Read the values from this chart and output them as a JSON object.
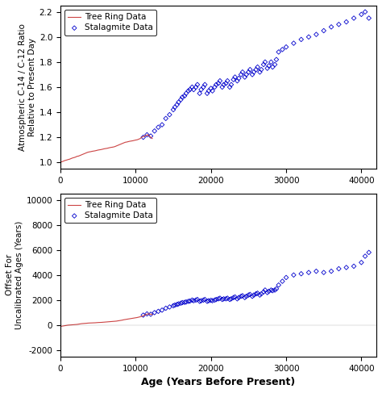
{
  "fig_width": 4.74,
  "fig_height": 4.87,
  "background_color": "#f0f0f0",
  "top_plot": {
    "xlabel": "",
    "ylabel": "Atmospheric C-14 / C-12 Ratio\nRelative to Present Day",
    "xlim": [
      0,
      42000
    ],
    "ylim": [
      0.95,
      2.25
    ],
    "yticks": [
      1.0,
      1.2,
      1.4,
      1.6,
      1.8,
      2.0,
      2.2
    ],
    "xticks": [
      0,
      10000,
      20000,
      30000,
      40000
    ],
    "tree_ring_color": "#cc4444",
    "stalagmite_color": "#0000cc",
    "legend_labels": [
      "Tree Ring Data",
      "Stalagmite Data"
    ]
  },
  "bottom_plot": {
    "xlabel": "Age (Years Before Present)",
    "ylabel": "Offset For\nUncalibrated Ages (Years)",
    "xlim": [
      0,
      42000
    ],
    "ylim": [
      -2500,
      10500
    ],
    "yticks": [
      -2000,
      0,
      2000,
      4000,
      6000,
      8000,
      10000
    ],
    "xticks": [
      0,
      10000,
      20000,
      30000,
      40000
    ],
    "tree_ring_color": "#cc4444",
    "stalagmite_color": "#0000cc",
    "legend_labels": [
      "Tree Ring Data",
      "Stalagmite Data"
    ]
  },
  "tree_ring_top_x": [
    0,
    200,
    400,
    600,
    800,
    1000,
    1200,
    1400,
    1600,
    1800,
    2000,
    2200,
    2400,
    2600,
    2800,
    3000,
    3200,
    3400,
    3600,
    3800,
    4000,
    4200,
    4400,
    4600,
    4800,
    5000,
    5200,
    5400,
    5600,
    5800,
    6000,
    6200,
    6400,
    6600,
    6800,
    7000,
    7200,
    7400,
    7600,
    7800,
    8000,
    8200,
    8400,
    8600,
    8800,
    9000,
    9200,
    9400,
    9600,
    9800,
    10000,
    10200,
    10400,
    10600,
    10800,
    11000,
    11200,
    11400,
    11600,
    11800,
    12000,
    12200
  ],
  "tree_ring_top_y": [
    1.0,
    1.005,
    1.01,
    1.015,
    1.018,
    1.022,
    1.025,
    1.03,
    1.035,
    1.038,
    1.042,
    1.048,
    1.05,
    1.055,
    1.06,
    1.065,
    1.07,
    1.075,
    1.08,
    1.083,
    1.085,
    1.088,
    1.09,
    1.092,
    1.095,
    1.098,
    1.1,
    1.102,
    1.105,
    1.108,
    1.11,
    1.112,
    1.115,
    1.118,
    1.12,
    1.122,
    1.125,
    1.13,
    1.135,
    1.14,
    1.145,
    1.15,
    1.155,
    1.16,
    1.162,
    1.165,
    1.168,
    1.17,
    1.172,
    1.175,
    1.178,
    1.18,
    1.185,
    1.19,
    1.2,
    1.205,
    1.21,
    1.215,
    1.22,
    1.21,
    1.2,
    1.19
  ],
  "stalagmite_top_x": [
    11000,
    11500,
    12000,
    12500,
    13000,
    13500,
    14000,
    14500,
    15000,
    15200,
    15500,
    15700,
    16000,
    16200,
    16500,
    16700,
    17000,
    17200,
    17500,
    17700,
    18000,
    18200,
    18500,
    18700,
    19000,
    19200,
    19500,
    19700,
    20000,
    20200,
    20500,
    20700,
    21000,
    21200,
    21500,
    21700,
    22000,
    22200,
    22500,
    22700,
    23000,
    23200,
    23500,
    23700,
    24000,
    24200,
    24500,
    24700,
    25000,
    25200,
    25500,
    25700,
    26000,
    26200,
    26500,
    26700,
    27000,
    27200,
    27500,
    27700,
    28000,
    28200,
    28500,
    28700,
    29000,
    29500,
    30000,
    31000,
    32000,
    33000,
    34000,
    35000,
    36000,
    37000,
    38000,
    39000,
    40000,
    40500,
    41000
  ],
  "stalagmite_top_y": [
    1.2,
    1.22,
    1.21,
    1.25,
    1.28,
    1.3,
    1.35,
    1.38,
    1.42,
    1.44,
    1.46,
    1.48,
    1.5,
    1.52,
    1.53,
    1.55,
    1.57,
    1.58,
    1.6,
    1.58,
    1.6,
    1.62,
    1.55,
    1.58,
    1.6,
    1.62,
    1.55,
    1.57,
    1.59,
    1.57,
    1.6,
    1.62,
    1.63,
    1.65,
    1.6,
    1.62,
    1.63,
    1.65,
    1.6,
    1.62,
    1.66,
    1.68,
    1.65,
    1.67,
    1.7,
    1.72,
    1.68,
    1.7,
    1.72,
    1.74,
    1.7,
    1.72,
    1.74,
    1.76,
    1.72,
    1.74,
    1.78,
    1.8,
    1.75,
    1.77,
    1.8,
    1.76,
    1.78,
    1.82,
    1.88,
    1.9,
    1.92,
    1.95,
    1.98,
    2.0,
    2.02,
    2.05,
    2.08,
    2.1,
    2.12,
    2.15,
    2.18,
    2.2,
    2.15
  ],
  "tree_ring_bot_x": [
    0,
    200,
    400,
    600,
    800,
    1000,
    1200,
    1400,
    1600,
    1800,
    2000,
    2200,
    2400,
    2600,
    2800,
    3000,
    3200,
    3400,
    3600,
    3800,
    4000,
    4200,
    4400,
    4600,
    4800,
    5000,
    5200,
    5400,
    5600,
    5800,
    6000,
    6200,
    6400,
    6600,
    6800,
    7000,
    7200,
    7400,
    7600,
    7800,
    8000,
    8200,
    8400,
    8600,
    8800,
    9000,
    9200,
    9400,
    9600,
    9800,
    10000,
    10200,
    10400,
    10600,
    10800,
    11000,
    11200,
    11400,
    11600,
    11800,
    12000,
    12200
  ],
  "tree_ring_bot_y": [
    -100,
    -80,
    -60,
    -40,
    -20,
    0,
    10,
    20,
    30,
    40,
    50,
    60,
    80,
    100,
    120,
    130,
    140,
    150,
    160,
    170,
    175,
    180,
    185,
    190,
    200,
    210,
    215,
    220,
    230,
    240,
    250,
    260,
    270,
    280,
    290,
    300,
    310,
    320,
    340,
    360,
    380,
    400,
    430,
    450,
    470,
    490,
    510,
    530,
    550,
    570,
    590,
    610,
    640,
    670,
    700,
    750,
    800,
    850,
    900,
    900,
    870,
    840
  ],
  "stalagmite_bot_x": [
    11000,
    11500,
    12000,
    12500,
    13000,
    13500,
    14000,
    14500,
    15000,
    15200,
    15500,
    15700,
    16000,
    16200,
    16500,
    16700,
    17000,
    17200,
    17500,
    17700,
    18000,
    18200,
    18500,
    18700,
    19000,
    19200,
    19500,
    19700,
    20000,
    20200,
    20500,
    20700,
    21000,
    21200,
    21500,
    21700,
    22000,
    22200,
    22500,
    22700,
    23000,
    23200,
    23500,
    23700,
    24000,
    24200,
    24500,
    24700,
    25000,
    25200,
    25500,
    25700,
    26000,
    26200,
    26500,
    26700,
    27000,
    27200,
    27500,
    27700,
    28000,
    28200,
    28500,
    28700,
    29000,
    29500,
    30000,
    31000,
    32000,
    33000,
    34000,
    35000,
    36000,
    37000,
    38000,
    39000,
    40000,
    40500,
    41000
  ],
  "stalagmite_bot_y": [
    800,
    900,
    870,
    1000,
    1100,
    1200,
    1350,
    1450,
    1550,
    1600,
    1650,
    1700,
    1750,
    1800,
    1820,
    1850,
    1900,
    1920,
    2000,
    1950,
    2000,
    2050,
    1900,
    1950,
    2000,
    2050,
    1900,
    1950,
    1980,
    1950,
    2000,
    2050,
    2100,
    2150,
    2050,
    2100,
    2100,
    2150,
    2050,
    2100,
    2200,
    2250,
    2100,
    2200,
    2300,
    2350,
    2200,
    2300,
    2400,
    2450,
    2300,
    2400,
    2500,
    2550,
    2400,
    2500,
    2650,
    2800,
    2600,
    2700,
    2800,
    2750,
    2800,
    2900,
    3200,
    3500,
    3800,
    4000,
    4100,
    4200,
    4300,
    4200,
    4300,
    4500,
    4600,
    4700,
    5000,
    5500,
    5800
  ]
}
